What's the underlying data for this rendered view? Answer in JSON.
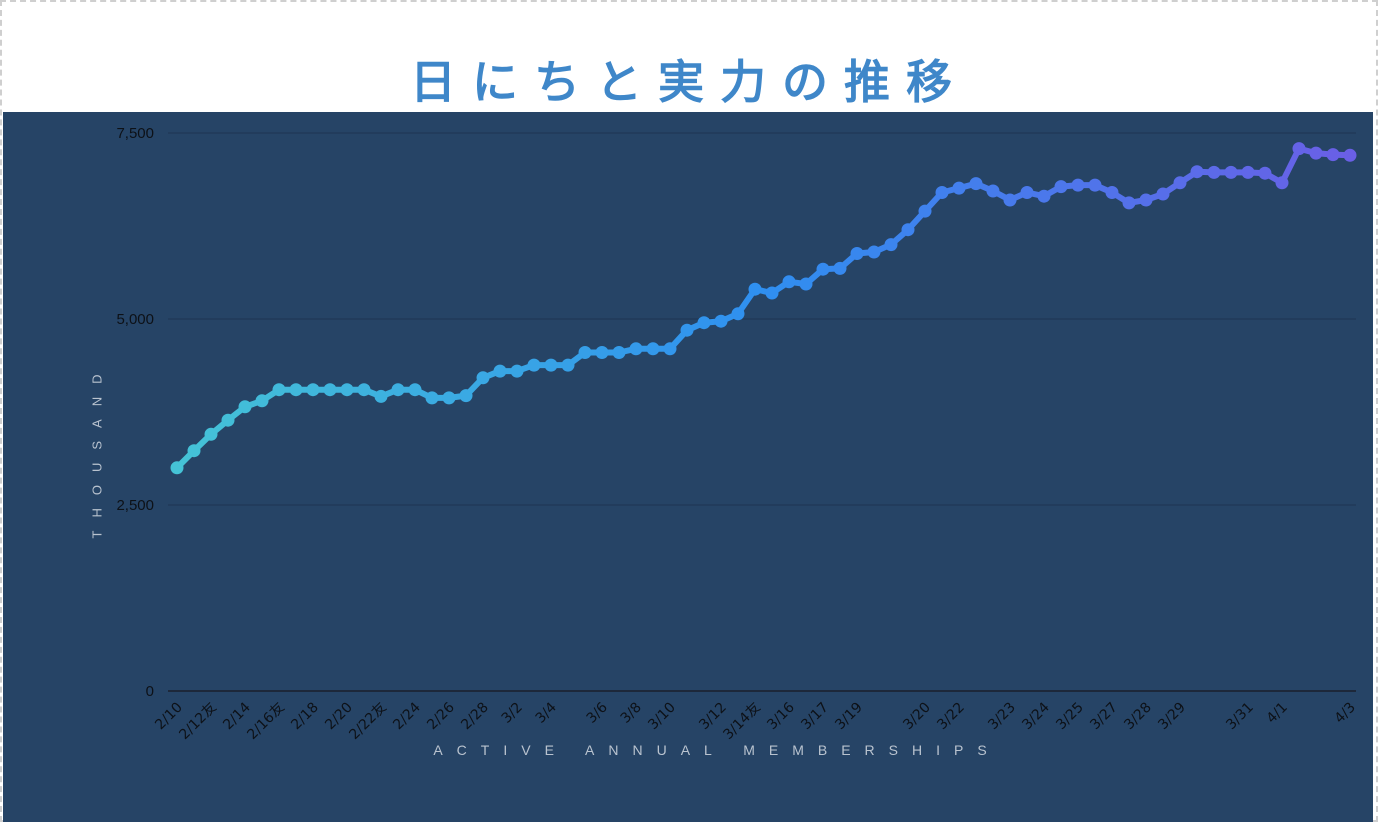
{
  "title": "日にちと実力の推移",
  "chart_data": {
    "type": "line",
    "title": "日にちと実力の推移",
    "xlabel": "ACTIVE ANNUAL MEMBERSHIPS",
    "ylabel": "THOUSAND",
    "ylim": [
      0,
      7500
    ],
    "yticks": [
      0,
      2500,
      5000,
      7500
    ],
    "ytick_labels": [
      "0",
      "2,500",
      "5,000",
      "7,500"
    ],
    "grid": true,
    "legend": "none",
    "colors": {
      "start": "#45c3d6",
      "mid": "#2f8ff0",
      "end": "#6a5fe6",
      "background": "#264466"
    },
    "xtick_labels": [
      "2/10",
      "2/12友",
      "2/14",
      "2/16友",
      "2/18",
      "2/20",
      "2/22友",
      "2/24",
      "2/26",
      "2/28",
      "3/2",
      "3/4",
      "3/6",
      "3/8",
      "3/10",
      "3/12",
      "3/14友",
      "3/16",
      "3/17",
      "3/19",
      "3/20",
      "3/22",
      "3/23",
      "3/24",
      "3/25",
      "3/27",
      "3/28",
      "3/29",
      "3/31",
      "4/1",
      "4/3"
    ],
    "xtick_index": [
      0,
      2,
      4,
      6,
      8,
      10,
      12,
      14,
      16,
      18,
      20,
      22,
      25,
      27,
      29,
      32,
      34,
      36,
      38,
      40,
      44,
      46,
      49,
      51,
      53,
      55,
      57,
      59,
      63,
      65,
      69
    ],
    "values": [
      3000,
      3230,
      3450,
      3640,
      3820,
      3900,
      4050,
      4050,
      4050,
      4050,
      4050,
      4050,
      3960,
      4050,
      4050,
      3940,
      3940,
      3970,
      4210,
      4300,
      4300,
      4380,
      4380,
      4380,
      4550,
      4550,
      4550,
      4600,
      4600,
      4600,
      4850,
      4950,
      4970,
      5070,
      5400,
      5350,
      5500,
      5470,
      5670,
      5680,
      5880,
      5900,
      6000,
      6200,
      6450,
      6700,
      6760,
      6820,
      6720,
      6600,
      6700,
      6650,
      6780,
      6800,
      6800,
      6700,
      6560,
      6600,
      6680,
      6830,
      6980,
      6970,
      6970,
      6970,
      6960,
      6830,
      7290,
      7230,
      7210,
      7200
    ]
  }
}
